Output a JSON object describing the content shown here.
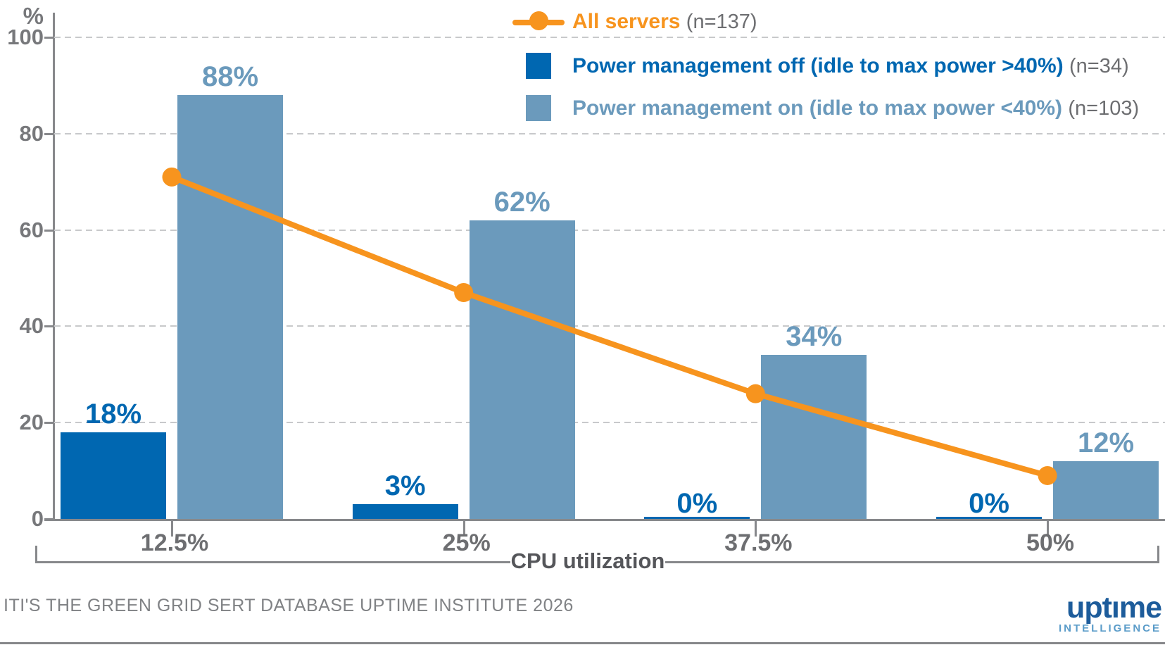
{
  "colors": {
    "dark_blue": "#0067b1",
    "light_blue": "#6b9abc",
    "orange": "#f7941e",
    "axis_gray": "#87888b",
    "tick_text": "#6d6e71",
    "grid_gray": "#c8c9cb"
  },
  "legend": {
    "items": [
      {
        "label": "All servers",
        "count": "(n=137)",
        "marker": "line-dot"
      },
      {
        "label": "Power management off (idle to max power >40%)",
        "count": "(n=34)",
        "marker": "square"
      },
      {
        "label": "Power management on (idle to max power <40%)",
        "count": "(n=103)",
        "marker": "square"
      }
    ]
  },
  "chart_data": {
    "type": "bar",
    "categories": [
      "12.5%",
      "25%",
      "37.5%",
      "50%"
    ],
    "series": [
      {
        "name": "All servers",
        "n": 137,
        "type": "line",
        "color_key": "orange",
        "values": [
          71,
          47,
          26,
          9
        ]
      },
      {
        "name": "Power management off (idle to max power >40%)",
        "n": 34,
        "type": "bar",
        "color_key": "dark_blue",
        "values": [
          18,
          3,
          0,
          0
        ],
        "value_labels": [
          "18%",
          "3%",
          "0%",
          "0%"
        ]
      },
      {
        "name": "Power management on (idle to max power <40%)",
        "n": 103,
        "type": "bar",
        "color_key": "light_blue",
        "values": [
          88,
          62,
          34,
          12
        ],
        "value_labels": [
          "88%",
          "62%",
          "34%",
          "12%"
        ]
      }
    ],
    "xlabel": "CPU utilization",
    "ylabel": "%",
    "ylim": [
      0,
      100
    ],
    "yticks": [
      0,
      20,
      40,
      60,
      80,
      100
    ],
    "grid": "dashed-horizontal",
    "legend_position": "top-right"
  },
  "footer": {
    "source": "ITI'S THE GREEN GRID SERT DATABASE UPTIME INSTITUTE 2026",
    "logo_word": "uptıme",
    "logo_sub": "INTELLIGENCE"
  }
}
